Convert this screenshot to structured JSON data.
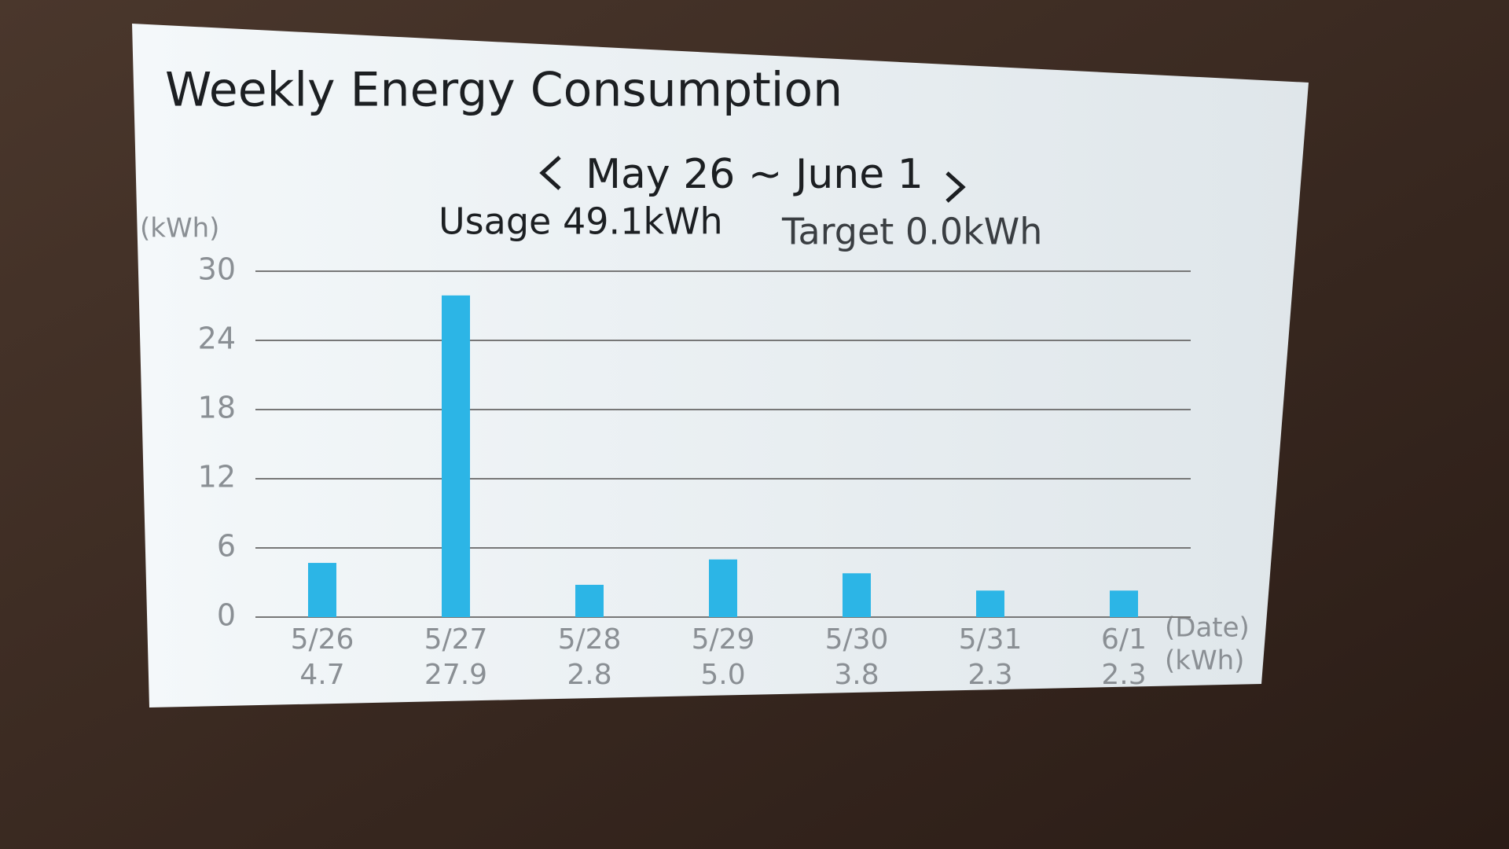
{
  "chart_data": {
    "type": "bar",
    "title": "Weekly Energy Consumption",
    "subtitle": "May 26 ~ June 1",
    "annotations": [
      "Usage 49.1kWh",
      "Target 0.0kWh"
    ],
    "y_label": "(kWh)",
    "x_label": "(Date)",
    "value_label_unit": "(kWh)",
    "categories": [
      "5/26",
      "5/27",
      "5/28",
      "5/29",
      "5/30",
      "5/31",
      "6/1"
    ],
    "values": [
      4.7,
      27.9,
      2.8,
      5.0,
      3.8,
      2.3,
      2.3
    ],
    "value_labels": [
      "4.7",
      "27.9",
      "2.8",
      "5.0",
      "3.8",
      "2.3",
      "2.3"
    ],
    "color": "#2cb5e6",
    "ylim": [
      0,
      30
    ],
    "yticks": [
      0,
      6,
      12,
      18,
      24,
      30
    ],
    "grid": true
  }
}
